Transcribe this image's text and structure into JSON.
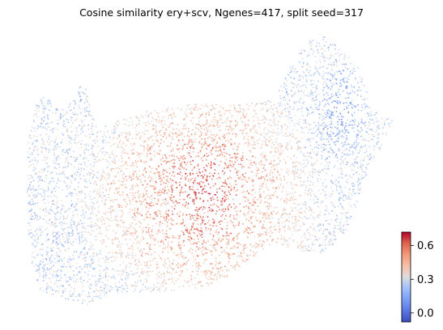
{
  "chart_data": {
    "type": "scatter",
    "title": "Cosine similarity ery+scv, Ngenes=417, split seed=317",
    "xlabel": "",
    "ylabel": "",
    "axes_visible": false,
    "grid": false,
    "point_count_approx": 6000,
    "colormap": "coolwarm",
    "colorbar": {
      "position": "right",
      "range": [
        -0.08,
        0.72
      ],
      "ticks": [
        0.0,
        0.3,
        0.6
      ],
      "tick_labels": [
        "0.0",
        "0.3",
        "0.6"
      ]
    },
    "point_value_summary": {
      "min": -0.08,
      "max": 0.72,
      "regions": [
        {
          "region": "left lobe",
          "typical_value": 0.3
        },
        {
          "region": "center",
          "typical_value": 0.6
        },
        {
          "region": "upper right lobe",
          "typical_value": 0.15
        }
      ]
    }
  },
  "colors": {
    "cmap_low": "#3b4cc0",
    "cmap_mid": "#dddddd",
    "cmap_high": "#b40426"
  }
}
